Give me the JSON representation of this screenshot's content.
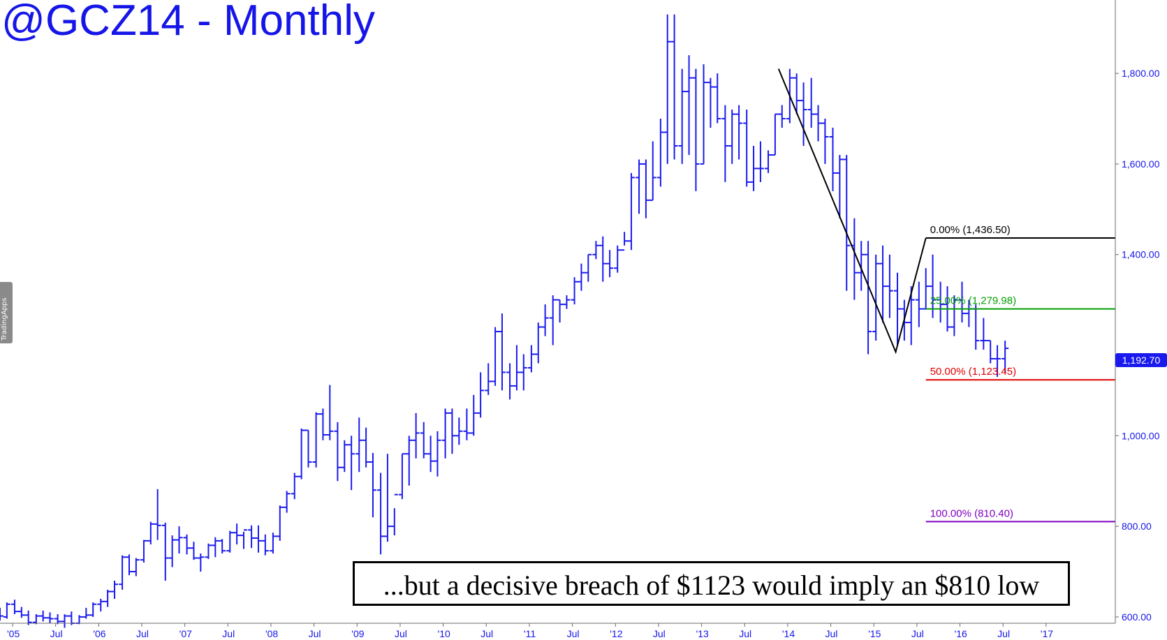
{
  "title": "@GCZ14 - Monthly",
  "last_price_label": "1,192.70",
  "annotation": "...but a decisive breach of $1123 would imply an $810 low",
  "watermark": "TradingApps",
  "colors": {
    "bars": "#1a1aef",
    "fib_0": "#000000",
    "fib_25": "#00a000",
    "fib_50": "#e00000",
    "fib_100": "#8000c0"
  },
  "chart_data": {
    "type": "ohlc",
    "timeframe": "monthly",
    "title": "@GCZ14 - Monthly",
    "x_tick_labels": [
      "'05",
      "Jul",
      "'06",
      "Jul",
      "'07",
      "Jul",
      "'08",
      "Jul",
      "'09",
      "Jul",
      "'10",
      "Jul",
      "'11",
      "Jul",
      "'12",
      "Jul",
      "'13",
      "Jul",
      "'14",
      "Jul",
      "'15",
      "Jul",
      "'16",
      "Jul",
      "'17"
    ],
    "y_tick_labels": [
      "1,800.00",
      "1,600.00",
      "1,400.00",
      "1,000.00",
      "800.00",
      "600.00"
    ],
    "x_range": [
      2005.0,
      2017.95
    ],
    "y_range": [
      586,
      1962
    ],
    "last_price": 1192.7,
    "series": [
      {
        "values": [
          [
            2005.0,
            612,
            620,
            592,
            602
          ],
          [
            2005.08,
            600,
            632,
            596,
            628
          ],
          [
            2005.17,
            628,
            638,
            606,
            612
          ],
          [
            2005.25,
            612,
            622,
            598,
            604
          ],
          [
            2005.33,
            604,
            614,
            582,
            588
          ],
          [
            2005.42,
            588,
            606,
            584,
            602
          ],
          [
            2005.5,
            602,
            614,
            590,
            598
          ],
          [
            2005.58,
            598,
            610,
            586,
            596
          ],
          [
            2005.67,
            596,
            606,
            584,
            590
          ],
          [
            2005.75,
            590,
            606,
            576,
            602
          ],
          [
            2005.83,
            602,
            612,
            582,
            586
          ],
          [
            2005.92,
            586,
            604,
            584,
            600
          ],
          [
            2006.0,
            600,
            620,
            596,
            604
          ],
          [
            2006.08,
            604,
            632,
            600,
            628
          ],
          [
            2006.17,
            628,
            640,
            612,
            634
          ],
          [
            2006.25,
            634,
            660,
            622,
            656
          ],
          [
            2006.33,
            656,
            680,
            640,
            672
          ],
          [
            2006.42,
            672,
            736,
            660,
            732
          ],
          [
            2006.5,
            732,
            738,
            692,
            700
          ],
          [
            2006.58,
            700,
            730,
            690,
            726
          ],
          [
            2006.67,
            726,
            770,
            720,
            768
          ],
          [
            2006.75,
            768,
            810,
            760,
            805
          ],
          [
            2006.83,
            805,
            882,
            770,
            802
          ],
          [
            2006.92,
            802,
            808,
            680,
            730
          ],
          [
            2007.0,
            730,
            780,
            710,
            770
          ],
          [
            2007.08,
            770,
            800,
            740,
            775
          ],
          [
            2007.17,
            775,
            782,
            738,
            752
          ],
          [
            2007.25,
            752,
            766,
            726,
            730
          ],
          [
            2007.33,
            730,
            740,
            700,
            732
          ],
          [
            2007.42,
            732,
            762,
            728,
            758
          ],
          [
            2007.5,
            758,
            776,
            732,
            768
          ],
          [
            2007.58,
            768,
            772,
            740,
            746
          ],
          [
            2007.67,
            746,
            790,
            742,
            786
          ],
          [
            2007.75,
            786,
            806,
            760,
            780
          ],
          [
            2007.83,
            780,
            788,
            750,
            792
          ],
          [
            2007.92,
            792,
            802,
            752,
            774
          ],
          [
            2008.0,
            774,
            802,
            742,
            768
          ],
          [
            2008.08,
            768,
            782,
            736,
            746
          ],
          [
            2008.17,
            746,
            786,
            740,
            778
          ],
          [
            2008.25,
            778,
            846,
            768,
            842
          ],
          [
            2008.33,
            842,
            878,
            830,
            872
          ],
          [
            2008.42,
            872,
            918,
            860,
            910
          ],
          [
            2008.5,
            910,
            1016,
            904,
            1012
          ],
          [
            2008.58,
            1012,
            1012,
            930,
            942
          ],
          [
            2008.67,
            942,
            1052,
            930,
            1048
          ],
          [
            2008.75,
            1048,
            1060,
            990,
            1002
          ],
          [
            2008.83,
            1002,
            1112,
            990,
            1010
          ],
          [
            2008.92,
            1010,
            1030,
            900,
            930
          ],
          [
            2009.0,
            930,
            990,
            920,
            980
          ],
          [
            2009.08,
            980,
            1000,
            880,
            960
          ],
          [
            2009.17,
            960,
            1040,
            920,
            990
          ],
          [
            2009.25,
            990,
            1018,
            930,
            942
          ],
          [
            2009.33,
            942,
            962,
            820,
            880
          ],
          [
            2009.42,
            880,
            918,
            738,
            778
          ],
          [
            2009.5,
            778,
            960,
            766,
            800
          ],
          [
            2009.58,
            800,
            840,
            780,
            870
          ],
          [
            2009.67,
            870,
            960,
            860,
            960
          ],
          [
            2009.75,
            960,
            1000,
            890,
            990
          ],
          [
            2009.83,
            990,
            1050,
            950,
            1006
          ],
          [
            2009.92,
            1006,
            1030,
            950,
            960
          ],
          [
            2010.0,
            960,
            1000,
            920,
            944
          ],
          [
            2010.08,
            944,
            1010,
            910,
            990
          ],
          [
            2010.17,
            990,
            1060,
            950,
            1050
          ],
          [
            2010.25,
            1050,
            1060,
            960,
            1000
          ],
          [
            2010.33,
            1000,
            1040,
            980,
            1010
          ],
          [
            2010.42,
            1010,
            1060,
            990,
            1006
          ],
          [
            2010.5,
            1006,
            1090,
            1000,
            1050
          ],
          [
            2010.58,
            1050,
            1140,
            1040,
            1100
          ],
          [
            2010.67,
            1100,
            1160,
            1090,
            1120
          ],
          [
            2010.75,
            1120,
            1240,
            1110,
            1230
          ],
          [
            2010.83,
            1230,
            1270,
            1100,
            1140
          ],
          [
            2010.92,
            1140,
            1160,
            1080,
            1110
          ],
          [
            2011.0,
            1110,
            1200,
            1100,
            1140
          ],
          [
            2011.08,
            1140,
            1180,
            1100,
            1150
          ],
          [
            2011.17,
            1150,
            1200,
            1140,
            1180
          ],
          [
            2011.25,
            1180,
            1250,
            1160,
            1240
          ],
          [
            2011.33,
            1240,
            1290,
            1220,
            1260
          ],
          [
            2011.42,
            1260,
            1310,
            1200,
            1300
          ],
          [
            2011.5,
            1300,
            1300,
            1250,
            1290
          ],
          [
            2011.58,
            1290,
            1310,
            1280,
            1300
          ],
          [
            2011.67,
            1300,
            1350,
            1290,
            1340
          ],
          [
            2011.75,
            1340,
            1380,
            1320,
            1360
          ],
          [
            2011.83,
            1360,
            1400,
            1340,
            1400
          ],
          [
            2011.92,
            1400,
            1430,
            1390,
            1420
          ],
          [
            2012.0,
            1420,
            1440,
            1340,
            1380
          ],
          [
            2012.08,
            1380,
            1410,
            1350,
            1370
          ],
          [
            2012.17,
            1370,
            1420,
            1360,
            1410
          ],
          [
            2012.25,
            1410,
            1450,
            1420,
            1430
          ],
          [
            2012.33,
            1430,
            1580,
            1410,
            1570
          ],
          [
            2012.42,
            1570,
            1610,
            1490,
            1600
          ],
          [
            2012.5,
            1600,
            1610,
            1480,
            1520
          ],
          [
            2012.58,
            1520,
            1650,
            1520,
            1570
          ],
          [
            2012.67,
            1570,
            1700,
            1550,
            1670
          ],
          [
            2012.75,
            1670,
            1930,
            1600,
            1870
          ],
          [
            2012.83,
            1870,
            1930,
            1610,
            1640
          ],
          [
            2012.92,
            1640,
            1810,
            1600,
            1760
          ],
          [
            2013.0,
            1760,
            1840,
            1620,
            1790
          ],
          [
            2013.08,
            1790,
            1810,
            1540,
            1600
          ],
          [
            2013.17,
            1600,
            1820,
            1600,
            1780
          ],
          [
            2013.25,
            1780,
            1790,
            1680,
            1770
          ],
          [
            2013.33,
            1770,
            1800,
            1690,
            1700
          ],
          [
            2013.42,
            1700,
            1730,
            1560,
            1640
          ],
          [
            2013.5,
            1640,
            1720,
            1600,
            1710
          ],
          [
            2013.58,
            1710,
            1730,
            1610,
            1690
          ],
          [
            2013.67,
            1690,
            1720,
            1550,
            1560
          ],
          [
            2013.75,
            1560,
            1640,
            1540,
            1590
          ],
          [
            2013.83,
            1590,
            1650,
            1560,
            1590
          ],
          [
            2013.92,
            1590,
            1630,
            1580,
            1620
          ],
          [
            2014.0,
            1620,
            1710,
            1620,
            1710
          ],
          [
            2014.08,
            1710,
            1730,
            1680,
            1700
          ],
          [
            2014.17,
            1700,
            1810,
            1690,
            1790
          ],
          [
            2014.25,
            1790,
            1800,
            1710,
            1740
          ],
          [
            2014.33,
            1740,
            1780,
            1640,
            1720
          ],
          [
            2014.42,
            1720,
            1790,
            1680,
            1710
          ],
          [
            2014.5,
            1710,
            1730,
            1650,
            1690
          ],
          [
            2014.58,
            1690,
            1700,
            1600,
            1660
          ],
          [
            2014.67,
            1660,
            1680,
            1540,
            1580
          ],
          [
            2014.75,
            1580,
            1620,
            1480,
            1610
          ],
          [
            2014.83,
            1610,
            1620,
            1320,
            1420
          ],
          [
            2014.92,
            1420,
            1480,
            1300,
            1360
          ],
          [
            2015.0,
            1360,
            1430,
            1320,
            1400
          ],
          [
            2015.08,
            1400,
            1430,
            1180,
            1230
          ],
          [
            2015.17,
            1230,
            1400,
            1210,
            1380
          ],
          [
            2015.25,
            1380,
            1420,
            1250,
            1330
          ],
          [
            2015.33,
            1330,
            1400,
            1260,
            1320
          ],
          [
            2015.42,
            1320,
            1360,
            1200,
            1280
          ],
          [
            2015.5,
            1280,
            1300,
            1210,
            1250
          ],
          [
            2015.58,
            1250,
            1330,
            1200,
            1300
          ],
          [
            2015.67,
            1300,
            1340,
            1240,
            1280
          ],
          [
            2015.75,
            1280,
            1370,
            1280,
            1330
          ],
          [
            2015.83,
            1330,
            1400,
            1260,
            1300
          ],
          [
            2015.92,
            1300,
            1340,
            1250,
            1290
          ],
          [
            2016.0,
            1290,
            1330,
            1230,
            1240
          ],
          [
            2016.08,
            1240,
            1310,
            1220,
            1300
          ],
          [
            2016.17,
            1300,
            1340,
            1250,
            1270
          ],
          [
            2016.25,
            1270,
            1300,
            1240,
            1280
          ],
          [
            2016.33,
            1280,
            1290,
            1190,
            1210
          ],
          [
            2016.42,
            1210,
            1260,
            1190,
            1210
          ],
          [
            2016.5,
            1210,
            1210,
            1160,
            1170
          ],
          [
            2016.58,
            1170,
            1200,
            1130,
            1170
          ],
          [
            2016.67,
            1170,
            1210,
            1140,
            1193
          ]
        ]
      }
    ],
    "fib_lines": [
      {
        "label": "0.00% (1,436.50)",
        "value": 1436.5
      },
      {
        "label": "25.00% (1,279.98)",
        "value": 1279.98
      },
      {
        "label": "50.00% (1,123.45)",
        "value": 1123.45
      },
      {
        "label": "100.00% (810.40)",
        "value": 810.4
      }
    ],
    "trend_lines": [
      {
        "points": [
          [
            2014.04,
            1810
          ],
          [
            2015.4,
            1185
          ],
          [
            2015.75,
            1436.5
          ]
        ]
      }
    ],
    "grid": false,
    "legend": "none"
  }
}
